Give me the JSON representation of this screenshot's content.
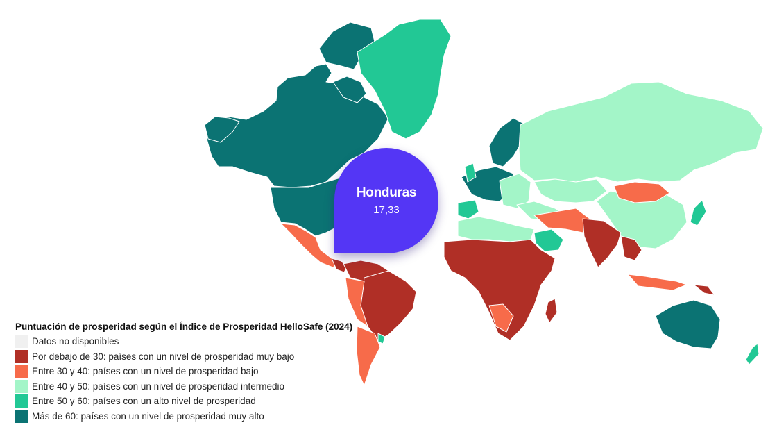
{
  "legend": {
    "title": "Puntuación de prosperidad según el Índice de Prosperidad HelloSafe (2024)",
    "items": [
      {
        "label": "Datos no disponibles",
        "color": "#f0f0f0"
      },
      {
        "label": "Por debajo de 30: países con un nivel de prosperidad muy bajo",
        "color": "#b02f26"
      },
      {
        "label": "Entre 30 y 40: países con un nivel de prosperidad bajo",
        "color": "#f76b4a"
      },
      {
        "label": "Entre 40 y 50: países con un nivel de prosperidad intermedio",
        "color": "#a3f5c8"
      },
      {
        "label": "Entre 50 y 60: países con un alto nivel de prosperidad",
        "color": "#22c895"
      },
      {
        "label": "Más de 60: países con un nivel de prosperidad muy alto",
        "color": "#0b7373"
      }
    ]
  },
  "tooltip": {
    "country": "Honduras",
    "value": "17,33"
  },
  "map_colors": {
    "no_data": "#f0f0f0",
    "very_low": "#b02f26",
    "low": "#f76b4a",
    "intermediate": "#a3f5c8",
    "high": "#22c895",
    "very_high": "#0b7373"
  }
}
